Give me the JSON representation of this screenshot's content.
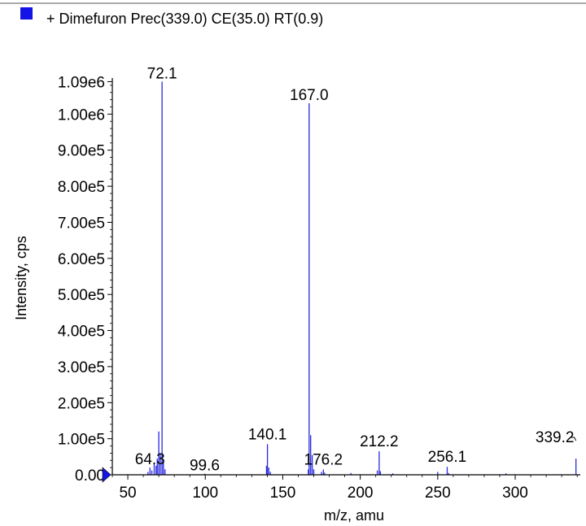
{
  "legend": {
    "text": "+ Dimefuron Prec(339.0) CE(35.0) RT(0.9)",
    "swatch_color": "#1414e6"
  },
  "chart_data": {
    "type": "bar",
    "title": "",
    "series": [
      {
        "name": "+ Dimefuron Prec(339.0) CE(35.0) RT(0.9)",
        "color": "#2a2ae0"
      }
    ],
    "xlabel": "m/z, amu",
    "ylabel": "Intensity, cps",
    "xlim": [
      40,
      342
    ],
    "ylim": [
      0,
      1100000
    ],
    "x_ticks": [
      50,
      100,
      150,
      200,
      250,
      300
    ],
    "y_ticks": [
      0,
      100000,
      200000,
      300000,
      400000,
      500000,
      600000,
      700000,
      800000,
      900000,
      1000000,
      1090000
    ],
    "y_tick_labels": [
      "0.00",
      "1.00e5",
      "2.00e5",
      "3.00e5",
      "4.00e5",
      "5.00e5",
      "6.00e5",
      "7.00e5",
      "8.00e5",
      "9.00e5",
      "1.00e6",
      "1.09e6"
    ],
    "peaks": [
      {
        "mz": 63.0,
        "intensity": 8000
      },
      {
        "mz": 64.3,
        "intensity": 20000,
        "label": "64.3"
      },
      {
        "mz": 65.5,
        "intensity": 12000
      },
      {
        "mz": 67.0,
        "intensity": 30000
      },
      {
        "mz": 68.2,
        "intensity": 25000
      },
      {
        "mz": 69.0,
        "intensity": 45000
      },
      {
        "mz": 70.0,
        "intensity": 120000
      },
      {
        "mz": 71.0,
        "intensity": 60000
      },
      {
        "mz": 72.1,
        "intensity": 1090000,
        "label": "72.1"
      },
      {
        "mz": 73.0,
        "intensity": 40000
      },
      {
        "mz": 74.0,
        "intensity": 15000
      },
      {
        "mz": 99.6,
        "intensity": 3000,
        "label": "99.6"
      },
      {
        "mz": 139.5,
        "intensity": 25000
      },
      {
        "mz": 140.1,
        "intensity": 85000,
        "label": "140.1"
      },
      {
        "mz": 141.0,
        "intensity": 20000
      },
      {
        "mz": 142.0,
        "intensity": 8000
      },
      {
        "mz": 166.5,
        "intensity": 15000
      },
      {
        "mz": 167.0,
        "intensity": 1030000,
        "label": "167.0"
      },
      {
        "mz": 168.0,
        "intensity": 110000
      },
      {
        "mz": 169.0,
        "intensity": 55000
      },
      {
        "mz": 170.0,
        "intensity": 15000
      },
      {
        "mz": 175.0,
        "intensity": 8000
      },
      {
        "mz": 176.2,
        "intensity": 15000,
        "label": "176.2"
      },
      {
        "mz": 177.0,
        "intensity": 6000
      },
      {
        "mz": 194.0,
        "intensity": 5000
      },
      {
        "mz": 211.0,
        "intensity": 12000
      },
      {
        "mz": 212.2,
        "intensity": 65000,
        "label": "212.2"
      },
      {
        "mz": 213.0,
        "intensity": 10000
      },
      {
        "mz": 221.0,
        "intensity": 4000
      },
      {
        "mz": 250.0,
        "intensity": 8000
      },
      {
        "mz": 256.1,
        "intensity": 22000,
        "label": "256.1"
      },
      {
        "mz": 257.0,
        "intensity": 5000
      },
      {
        "mz": 294.0,
        "intensity": 4000
      },
      {
        "mz": 339.2,
        "intensity": 45000,
        "label": "339.2"
      }
    ]
  }
}
